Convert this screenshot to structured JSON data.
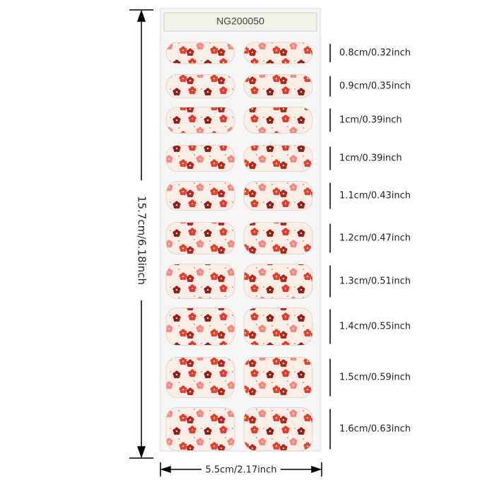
{
  "product": {
    "code": "NG200050",
    "height_label": "15.7cm/6.18inch",
    "width_label": "5.5cm/2.17inch",
    "strip_sizes": [
      "0.8cm/0.32inch",
      "0.9cm/0.35inch",
      "1cm/0.39inch",
      "1cm/0.39inch",
      "1.1cm/0.43inch",
      "1.2cm/0.47inch",
      "1.3cm/0.51inch",
      "1.4cm/0.55inch",
      "1.5cm/0.59inch",
      "1.6cm/0.63inch"
    ]
  }
}
